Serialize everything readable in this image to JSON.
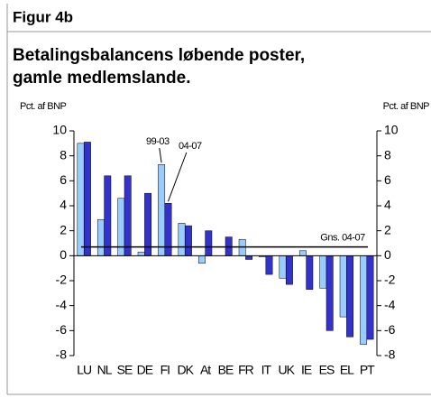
{
  "chart_data": {
    "type": "bar",
    "header": "Figur 4b",
    "title_lines": [
      "Betalingsbalancens løbende poster,",
      "gamle medlemslande."
    ],
    "ylabel": "Pct. af BNP",
    "y2label": "Pct. af BNP",
    "categories": [
      "LU",
      "NL",
      "SE",
      "DE",
      "FI",
      "DK",
      "At",
      "BE",
      "FR",
      "IT",
      "UK",
      "IE",
      "ES",
      "EL",
      "PT"
    ],
    "series": [
      {
        "name": "99-03",
        "color": "#99ccff",
        "values": [
          9.0,
          2.9,
          4.6,
          0.3,
          7.3,
          2.6,
          -0.6,
          0,
          1.3,
          -0.1,
          -1.8,
          0.4,
          -2.6,
          -4.9,
          -7.1
        ]
      },
      {
        "name": "04-07",
        "color": "#3333cc",
        "values": [
          9.1,
          6.4,
          6.4,
          5.0,
          4.2,
          2.4,
          2.0,
          1.5,
          -0.3,
          -1.5,
          -2.3,
          -2.7,
          -6.0,
          -6.5,
          -6.7
        ]
      }
    ],
    "average_line": {
      "label": "Gns. 04-07",
      "value": 0.7
    },
    "ylim": [
      -8,
      10
    ],
    "yticks": [
      -8,
      -6,
      -4,
      -2,
      0,
      2,
      4,
      6,
      8,
      10
    ],
    "y2lim": [
      -8,
      10
    ],
    "y2ticks": [
      -8,
      -6,
      -4,
      -2,
      0,
      2,
      4,
      6,
      8,
      10
    ]
  }
}
